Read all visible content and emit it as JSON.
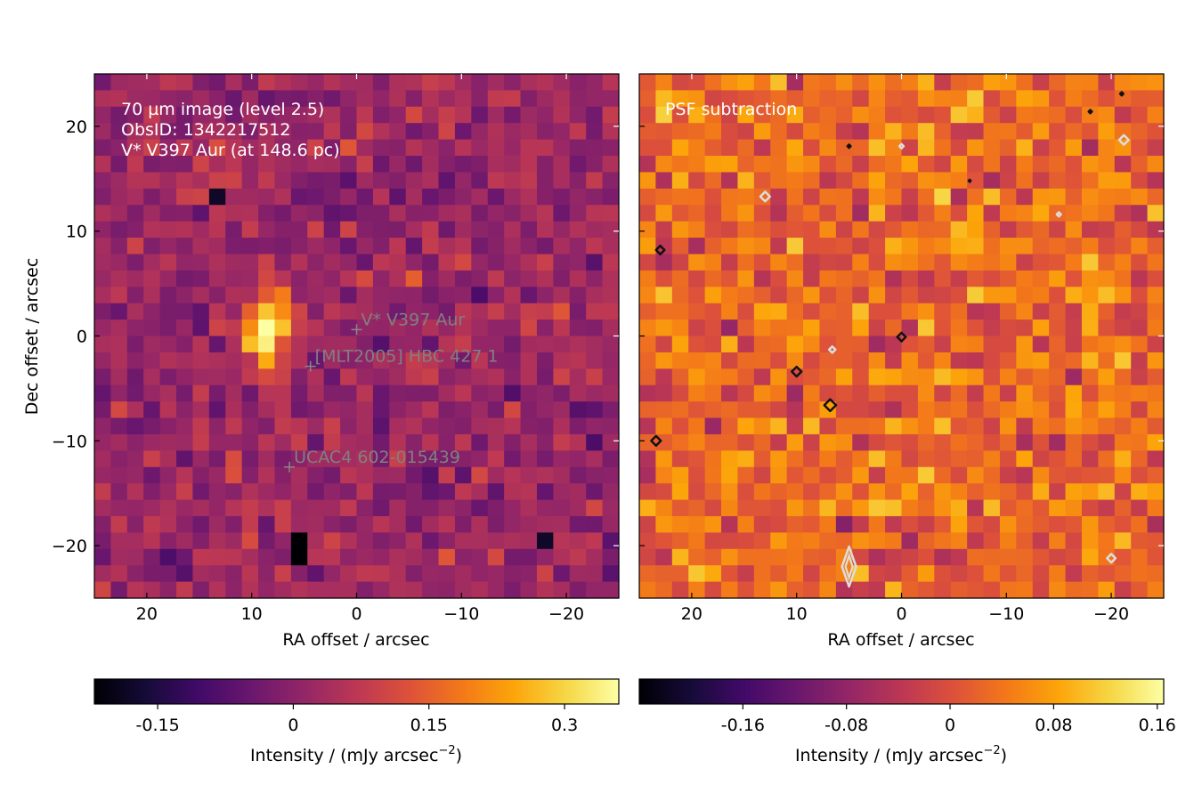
{
  "chart_data": [
    {
      "type": "heatmap",
      "panel": "left",
      "title": "",
      "annotation_lines": [
        "70 µm image (level 2.5)",
        "ObsID: 1342217512",
        "V* V397 Aur (at 148.6 pc)"
      ],
      "xlabel": "RA offset / arcsec",
      "ylabel": "Dec offset / arcsec",
      "xlim": [
        25,
        -25
      ],
      "ylim": [
        -25,
        25
      ],
      "xticks": [
        20,
        10,
        0,
        -10,
        -20
      ],
      "xtick_labels": [
        "20",
        "10",
        "0",
        "−10",
        "−20"
      ],
      "yticks": [
        20,
        10,
        0,
        -10,
        -20
      ],
      "ytick_labels": [
        "20",
        "10",
        "0",
        "−10",
        "−20"
      ],
      "grid": false,
      "colormap": "inferno",
      "colorbar": {
        "label_main": "Intensity / (mJy arcsec",
        "label_exp": "−2",
        "label_close": ")",
        "vmin": -0.22,
        "vmax": 0.36,
        "ticks": [
          -0.15,
          0,
          0.15,
          0.3
        ],
        "tick_labels": [
          "-0.15",
          "0",
          "0.15",
          "0.3"
        ]
      },
      "pixel_size_arcsec": 1.6,
      "source_markers": [
        {
          "name": "V* V397 Aur",
          "x": 0.0,
          "y": 0.6
        },
        {
          "name": "[MLT2005] HBC 427 1",
          "x": 4.4,
          "y": -2.9
        },
        {
          "name": "UCAC4 602-015439",
          "x": 6.4,
          "y": -12.5
        }
      ],
      "bright_source": {
        "x": 8.0,
        "y": 0.2,
        "peak": 0.36
      },
      "dark_pixels": [
        {
          "x": 4.8,
          "y": -21.2,
          "value": -0.22
        },
        {
          "x": 4.8,
          "y": -22.8,
          "value": -0.22
        },
        {
          "x": -19.2,
          "y": -20.8,
          "value": -0.18
        },
        {
          "x": 13.6,
          "y": 12.8,
          "value": -0.18
        }
      ]
    },
    {
      "type": "heatmap",
      "panel": "right",
      "title": "",
      "annotation_lines": [
        "PSF subtraction"
      ],
      "xlabel": "RA offset / arcsec",
      "ylabel": "",
      "xlim": [
        25,
        -25
      ],
      "ylim": [
        -25,
        25
      ],
      "xticks": [
        20,
        10,
        0,
        -10,
        -20
      ],
      "xtick_labels": [
        "20",
        "10",
        "0",
        "−10",
        "−20"
      ],
      "yticks": [
        20,
        10,
        0,
        -10,
        -20
      ],
      "ytick_labels": [],
      "grid": false,
      "colormap": "inferno",
      "colorbar": {
        "label_main": "Intensity / (mJy arcsec",
        "label_exp": "−2",
        "label_close": ")",
        "vmin": -0.24,
        "vmax": 0.165,
        "ticks": [
          -0.16,
          -0.08,
          0,
          0.08,
          0.16
        ],
        "tick_labels": [
          "-0.16",
          "-0.08",
          "0",
          "0.08",
          "0.16"
        ]
      },
      "pixel_size_arcsec": 1.6,
      "contours": [
        {
          "color": "#111111",
          "x": 23.0,
          "y": 8.2,
          "size": 0.8
        },
        {
          "color": "#111111",
          "x": 23.4,
          "y": -10.0,
          "size": 0.9
        },
        {
          "color": "#111111",
          "x": 10.0,
          "y": -3.4,
          "size": 0.9
        },
        {
          "color": "#111111",
          "x": 6.8,
          "y": -6.6,
          "size": 1.1
        },
        {
          "color": "#111111",
          "x": 0.0,
          "y": -0.1,
          "size": 0.8
        },
        {
          "color": "#111111",
          "x": 5.0,
          "y": 18.1,
          "size": 0.3
        },
        {
          "color": "#111111",
          "x": -18.0,
          "y": 21.4,
          "size": 0.3
        },
        {
          "color": "#111111",
          "x": -21.0,
          "y": 23.1,
          "size": 0.3
        },
        {
          "color": "#111111",
          "x": -6.5,
          "y": 14.8,
          "size": 0.2
        },
        {
          "color": "#dddddd",
          "x": 13.0,
          "y": 13.3,
          "size": 0.9
        },
        {
          "color": "#dddddd",
          "x": 6.6,
          "y": -1.3,
          "size": 0.6
        },
        {
          "color": "#dddddd",
          "x": 0.0,
          "y": 18.1,
          "size": 0.4
        },
        {
          "color": "#dddddd",
          "x": -15.0,
          "y": 11.6,
          "size": 0.4
        },
        {
          "color": "#dddddd",
          "x": -21.2,
          "y": 18.7,
          "size": 0.9
        },
        {
          "color": "#dddddd",
          "x": -20.0,
          "y": -21.2,
          "size": 0.8
        },
        {
          "color": "#dddddd",
          "x": 5.0,
          "y": -22.0,
          "size": 2.2
        }
      ]
    }
  ]
}
